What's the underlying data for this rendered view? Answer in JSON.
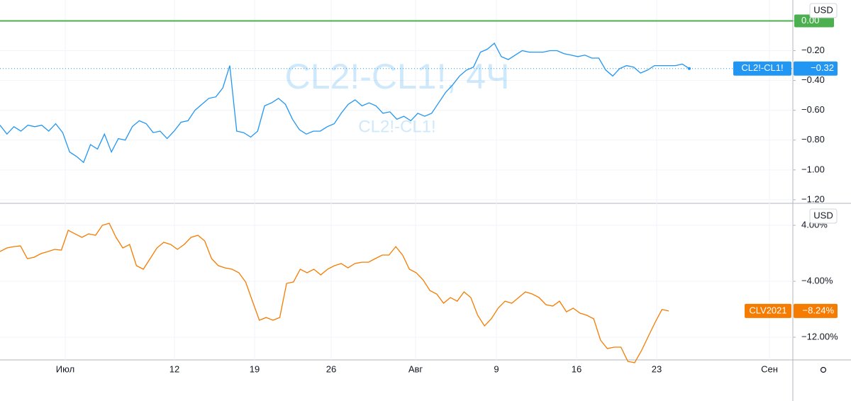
{
  "chart_data": [
    {
      "type": "line",
      "watermark": "CL2!-CL1!, 4Ч",
      "watermark_subtitle": "CL2!-CL1!",
      "currency": "USD",
      "ylim": [
        -1.21,
        0.14
      ],
      "yticks": [
        {
          "value": 0,
          "label": "0.00"
        },
        {
          "value": -0.2,
          "label": "−0.20"
        },
        {
          "value": -0.4,
          "label": "−0.40"
        },
        {
          "value": -0.6,
          "label": "−0.60"
        },
        {
          "value": -0.8,
          "label": "−0.80"
        },
        {
          "value": -1,
          "label": "−1.00"
        },
        {
          "value": -1.2,
          "label": "−1.20"
        }
      ],
      "level_line": {
        "value": 0,
        "color": "#4caf50"
      },
      "series": [
        {
          "name": "CL2!-CL1!",
          "color": "#2196f3",
          "last_value_label": "−0.32",
          "values": [
            -0.7,
            -0.76,
            -0.71,
            -0.74,
            -0.7,
            -0.71,
            -0.7,
            -0.74,
            -0.69,
            -0.75,
            -0.88,
            -0.91,
            -0.95,
            -0.83,
            -0.86,
            -0.76,
            -0.88,
            -0.79,
            -0.8,
            -0.71,
            -0.67,
            -0.69,
            -0.75,
            -0.74,
            -0.79,
            -0.74,
            -0.68,
            -0.67,
            -0.6,
            -0.56,
            -0.52,
            -0.51,
            -0.45,
            -0.3,
            -0.74,
            -0.75,
            -0.78,
            -0.74,
            -0.57,
            -0.55,
            -0.52,
            -0.56,
            -0.66,
            -0.73,
            -0.76,
            -0.74,
            -0.74,
            -0.71,
            -0.69,
            -0.62,
            -0.56,
            -0.53,
            -0.57,
            -0.55,
            -0.57,
            -0.62,
            -0.61,
            -0.66,
            -0.64,
            -0.67,
            -0.62,
            -0.64,
            -0.62,
            -0.55,
            -0.48,
            -0.43,
            -0.37,
            -0.33,
            -0.31,
            -0.21,
            -0.19,
            -0.15,
            -0.24,
            -0.26,
            -0.23,
            -0.2,
            -0.21,
            -0.21,
            -0.21,
            -0.2,
            -0.2,
            -0.22,
            -0.23,
            -0.24,
            -0.23,
            -0.25,
            -0.25,
            -0.33,
            -0.37,
            -0.32,
            -0.3,
            -0.31,
            -0.35,
            -0.33,
            -0.3,
            -0.3,
            -0.3,
            -0.3,
            -0.29,
            -0.32
          ]
        }
      ]
    },
    {
      "type": "line",
      "currency": "USD",
      "ylim": [
        -15.95,
        6.84
      ],
      "yticks": [
        {
          "value": 4,
          "label": "4.00%"
        },
        {
          "value": -4,
          "label": "−4.00%"
        },
        {
          "value": -12,
          "label": "−12.00%"
        }
      ],
      "series": [
        {
          "name": "CLV2021",
          "color": "#f57c00",
          "last_value_label": "−8.24%",
          "values": [
            0.25,
            0.76,
            0.96,
            1.06,
            -0.76,
            -0.56,
            -0.05,
            0.25,
            0.56,
            0.46,
            3.29,
            2.78,
            2.28,
            2.78,
            2.58,
            4.0,
            4.3,
            2.28,
            0.76,
            1.27,
            -1.77,
            -2.28,
            -0.76,
            0.76,
            1.57,
            1.27,
            0.56,
            1.27,
            2.28,
            2.58,
            1.77,
            -0.76,
            -1.77,
            -2.08,
            -2.28,
            -2.78,
            -4.1,
            -6.84,
            -9.57,
            -9.17,
            -9.57,
            -9.17,
            -4.3,
            -4.1,
            -2.28,
            -2.78,
            -2.28,
            -3.09,
            -2.28,
            -1.77,
            -1.47,
            -2.08,
            -1.47,
            -1.27,
            -1.27,
            -0.76,
            -0.25,
            -0.25,
            0.96,
            -0.25,
            -2.28,
            -2.78,
            -3.8,
            -5.32,
            -5.82,
            -7.14,
            -6.33,
            -6.84,
            -5.52,
            -6.33,
            -8.86,
            -10.38,
            -9.37,
            -7.85,
            -6.84,
            -7.14,
            -6.33,
            -5.52,
            -5.82,
            -6.33,
            -7.34,
            -7.54,
            -6.84,
            -8.36,
            -7.85,
            -8.56,
            -8.86,
            -9.37,
            -12.41,
            -13.62,
            -13.42,
            -13.42,
            -15.44,
            -15.65,
            -13.92,
            -11.9,
            -9.87,
            -8.04,
            -8.24
          ]
        }
      ],
      "xtick_labels": [
        "Июл",
        "12",
        "19",
        "26",
        "Авг",
        "9",
        "16",
        "23",
        "Сен"
      ]
    }
  ]
}
